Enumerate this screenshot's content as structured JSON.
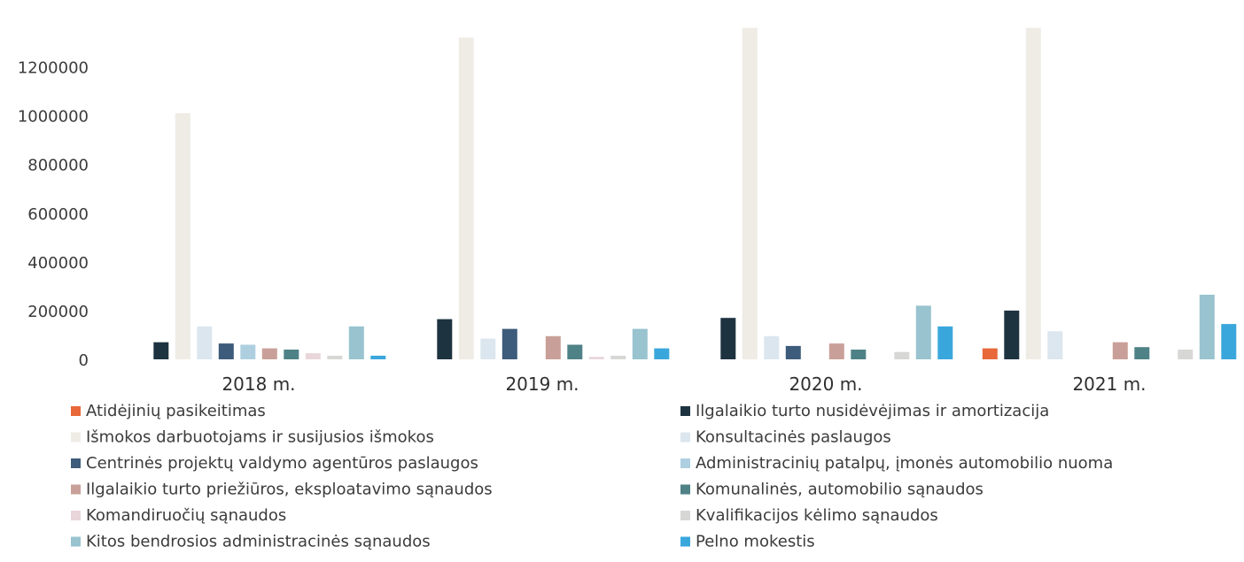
{
  "chart_data": {
    "type": "bar",
    "title": "",
    "xlabel": "",
    "ylabel": "",
    "ylim": [
      0,
      1300000
    ],
    "yticks": [
      0,
      200000,
      400000,
      600000,
      800000,
      1000000,
      1200000
    ],
    "ytick_labels": [
      "0",
      "200000",
      "400000",
      "600000",
      "800000",
      "1000000",
      "1200000"
    ],
    "categories": [
      "2018 m.",
      "2019 m.",
      "2020 m.",
      "2021 m."
    ],
    "grid": false,
    "legend_position": "bottom",
    "series": [
      {
        "name": "Atidėjinių pasikeitimas",
        "color": "#e8683a",
        "values": [
          0,
          0,
          0,
          45000
        ]
      },
      {
        "name": "Ilgalaikio turto nusidėvėjimas ir amortizacija",
        "color": "#1e3340",
        "values": [
          70000,
          165000,
          170000,
          200000
        ]
      },
      {
        "name": "Išmokos darbuotojams ir susijusios išmokos",
        "color": "#efece6",
        "values": [
          1010000,
          1320000,
          1360000,
          1360000
        ]
      },
      {
        "name": "Konsultacinės paslaugos",
        "color": "#dce6ee",
        "values": [
          135000,
          85000,
          95000,
          115000
        ]
      },
      {
        "name": "Centrinės projektų valdymo agentūros paslaugos",
        "color": "#3d5b7a",
        "values": [
          65000,
          125000,
          55000,
          0
        ]
      },
      {
        "name": "Administracinių patalpų, įmonės automobilio nuoma",
        "color": "#aecfe0",
        "values": [
          60000,
          0,
          0,
          0
        ]
      },
      {
        "name": "Ilgalaikio turto priežiūros, eksploatavimo sąnaudos",
        "color": "#c9a099",
        "values": [
          45000,
          95000,
          65000,
          70000
        ]
      },
      {
        "name": "Komunalinės, automobilio sąnaudos",
        "color": "#4f8286",
        "values": [
          40000,
          60000,
          40000,
          50000
        ]
      },
      {
        "name": "Komandiruočių sąnaudos",
        "color": "#e9d6da",
        "values": [
          25000,
          10000,
          0,
          0
        ]
      },
      {
        "name": "Kvalifikacijos kėlimo sąnaudos",
        "color": "#d7d7d5",
        "values": [
          15000,
          15000,
          30000,
          40000
        ]
      },
      {
        "name": "Kitos bendrosios administracinės sąnaudos",
        "color": "#98c3cf",
        "values": [
          135000,
          125000,
          220000,
          265000
        ]
      },
      {
        "name": "Pelno mokestis",
        "color": "#3aa7dc",
        "values": [
          15000,
          45000,
          135000,
          145000
        ]
      }
    ]
  }
}
